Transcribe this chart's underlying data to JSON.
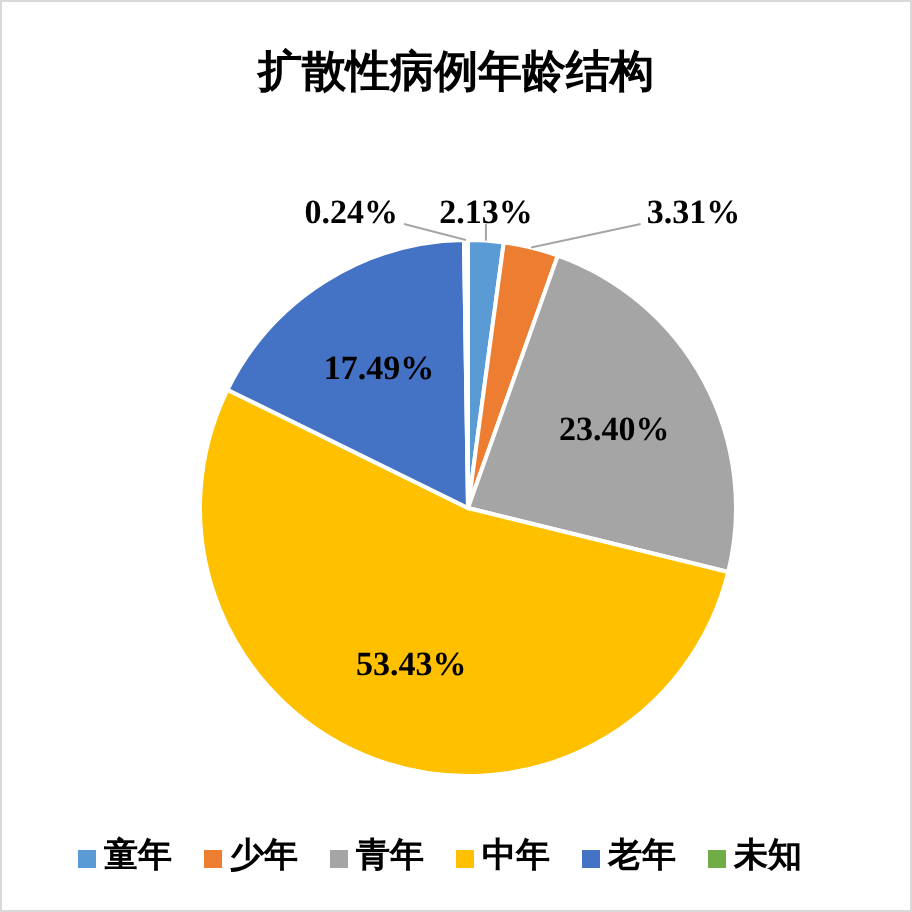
{
  "chart_data": {
    "type": "pie",
    "title": "扩散性病例年龄结构",
    "categories": [
      "童年",
      "少年",
      "青年",
      "中年",
      "老年",
      "未知"
    ],
    "values": [
      2.13,
      3.31,
      23.4,
      53.43,
      17.49,
      0.24
    ],
    "value_labels": [
      "2.13%",
      "3.31%",
      "23.40%",
      "53.43%",
      "17.49%",
      "0.24%"
    ],
    "colors": [
      "#5b9bd5",
      "#ed7d31",
      "#a5a5a5",
      "#ffc000",
      "#4472c4",
      "#70ad47"
    ],
    "legend": "bottom"
  }
}
